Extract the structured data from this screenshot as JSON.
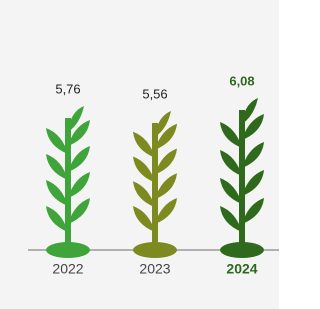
{
  "chart_data": {
    "type": "plant",
    "categories": [
      "2022",
      "2023",
      "2024"
    ],
    "values": [
      5.76,
      5.56,
      6.08
    ],
    "value_labels": [
      "5,76",
      "5,56",
      "6,08"
    ],
    "colors": [
      "#3fa43a",
      "#7d8a1f",
      "#2f6a1c"
    ],
    "highlight": "2024"
  }
}
